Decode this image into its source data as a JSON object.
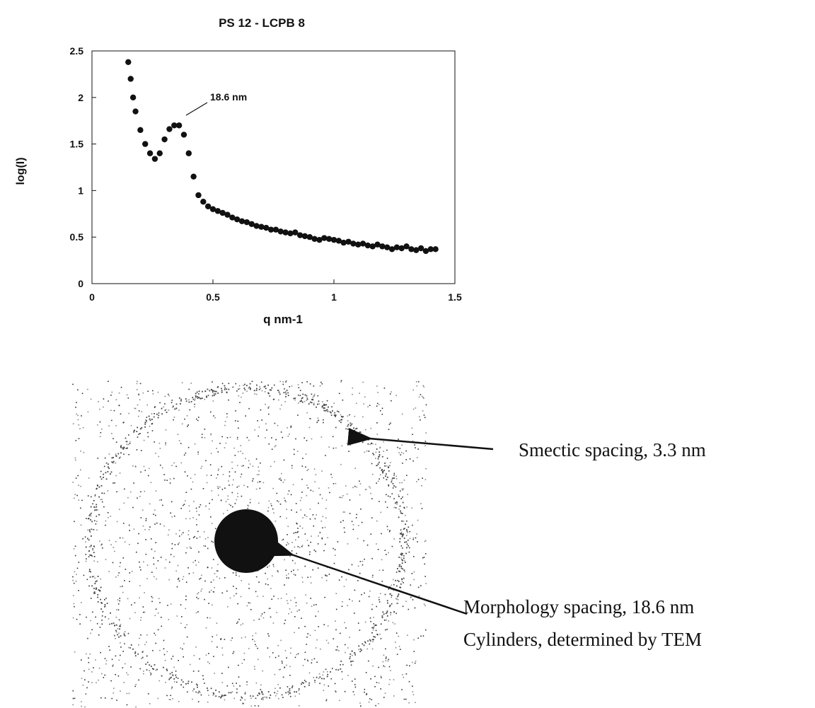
{
  "chart_data": {
    "type": "scatter",
    "title": "PS 12 - LCPB 8",
    "x_label": "q nm-1",
    "y_label": "log(I)",
    "annotation": "18.6 nm",
    "color": "#111111",
    "xlim": [
      0,
      1.5
    ],
    "ylim": [
      0,
      2.5
    ],
    "xticks": [
      0,
      0.5,
      1,
      1.5
    ],
    "yticks": [
      0,
      0.5,
      1,
      1.5,
      2,
      2.5
    ],
    "x": [
      0.15,
      0.16,
      0.17,
      0.18,
      0.2,
      0.22,
      0.24,
      0.26,
      0.28,
      0.3,
      0.32,
      0.34,
      0.36,
      0.38,
      0.4,
      0.42,
      0.44,
      0.46,
      0.48,
      0.5,
      0.52,
      0.54,
      0.56,
      0.58,
      0.6,
      0.62,
      0.64,
      0.66,
      0.68,
      0.7,
      0.72,
      0.74,
      0.76,
      0.78,
      0.8,
      0.82,
      0.84,
      0.86,
      0.88,
      0.9,
      0.92,
      0.94,
      0.96,
      0.98,
      1.0,
      1.02,
      1.04,
      1.06,
      1.08,
      1.1,
      1.12,
      1.14,
      1.16,
      1.18,
      1.2,
      1.22,
      1.24,
      1.26,
      1.28,
      1.3,
      1.32,
      1.34,
      1.36,
      1.38,
      1.4,
      1.42
    ],
    "values": [
      2.38,
      2.2,
      2.0,
      1.85,
      1.65,
      1.5,
      1.4,
      1.34,
      1.4,
      1.55,
      1.66,
      1.7,
      1.7,
      1.6,
      1.4,
      1.15,
      0.95,
      0.88,
      0.83,
      0.8,
      0.78,
      0.76,
      0.74,
      0.71,
      0.69,
      0.67,
      0.66,
      0.64,
      0.62,
      0.61,
      0.6,
      0.58,
      0.58,
      0.56,
      0.55,
      0.54,
      0.55,
      0.52,
      0.51,
      0.5,
      0.48,
      0.47,
      0.49,
      0.48,
      0.47,
      0.46,
      0.44,
      0.45,
      0.43,
      0.42,
      0.43,
      0.41,
      0.4,
      0.42,
      0.4,
      0.39,
      0.37,
      0.39,
      0.38,
      0.4,
      0.37,
      0.36,
      0.38,
      0.35,
      0.37,
      0.37
    ]
  },
  "image": {
    "annotations": [
      "Smectic spacing, 3.3 nm",
      "Morphology spacing, 18.6 nm",
      "Cylinders, determined by TEM"
    ]
  }
}
